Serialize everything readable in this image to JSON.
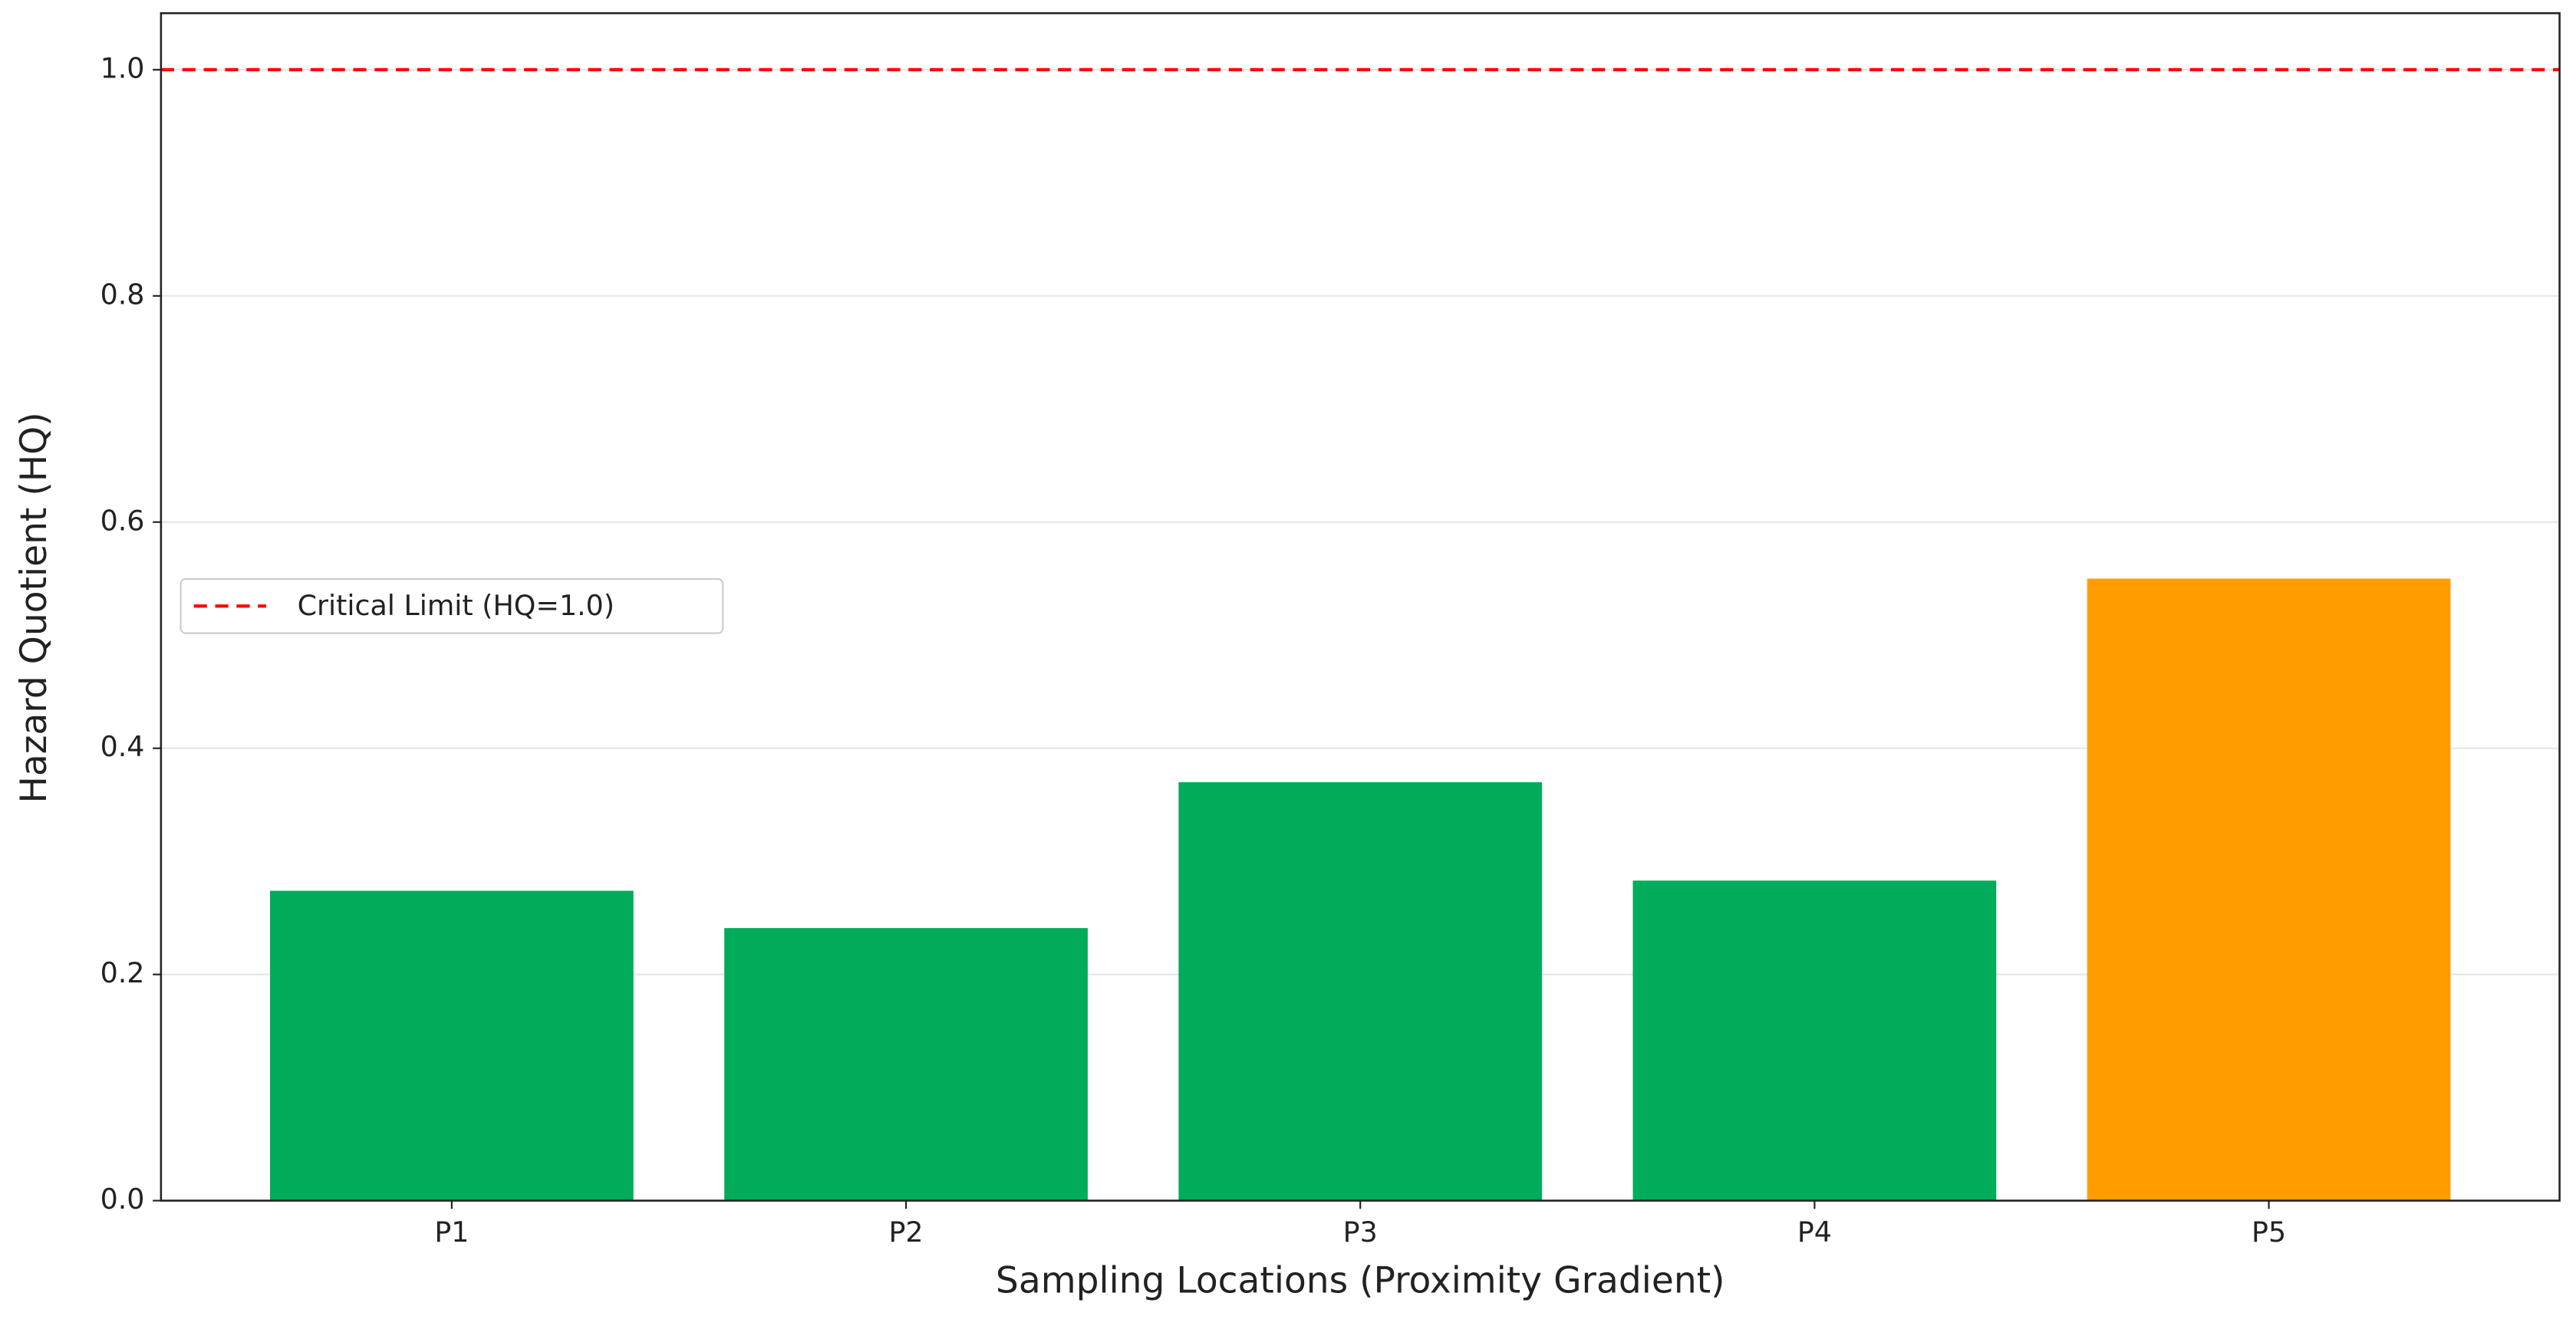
{
  "chart_data": {
    "type": "bar",
    "x_label": "Sampling Locations (Proximity Gradient)",
    "y_label": "Hazard Quotient (HQ)",
    "categories": [
      "P1",
      "P2",
      "P3",
      "P4",
      "P5"
    ],
    "values": [
      0.274,
      0.241,
      0.37,
      0.283,
      0.55
    ],
    "colors": [
      "#00ab5a",
      "#00ab5a",
      "#00ab5a",
      "#00ab5a",
      "#ff9d00"
    ],
    "ylim": [
      0,
      1.05
    ],
    "yticks": [
      {
        "value": 0,
        "label": "0.0"
      },
      0.2,
      0.4,
      0.6,
      0.8,
      {
        "value": 1,
        "label": "1.0"
      }
    ],
    "grid": true,
    "reference_line": {
      "value": 1,
      "label": "Critical Limit (HQ=1.0)",
      "color": "#ff0000"
    },
    "legend_position": "center left"
  }
}
